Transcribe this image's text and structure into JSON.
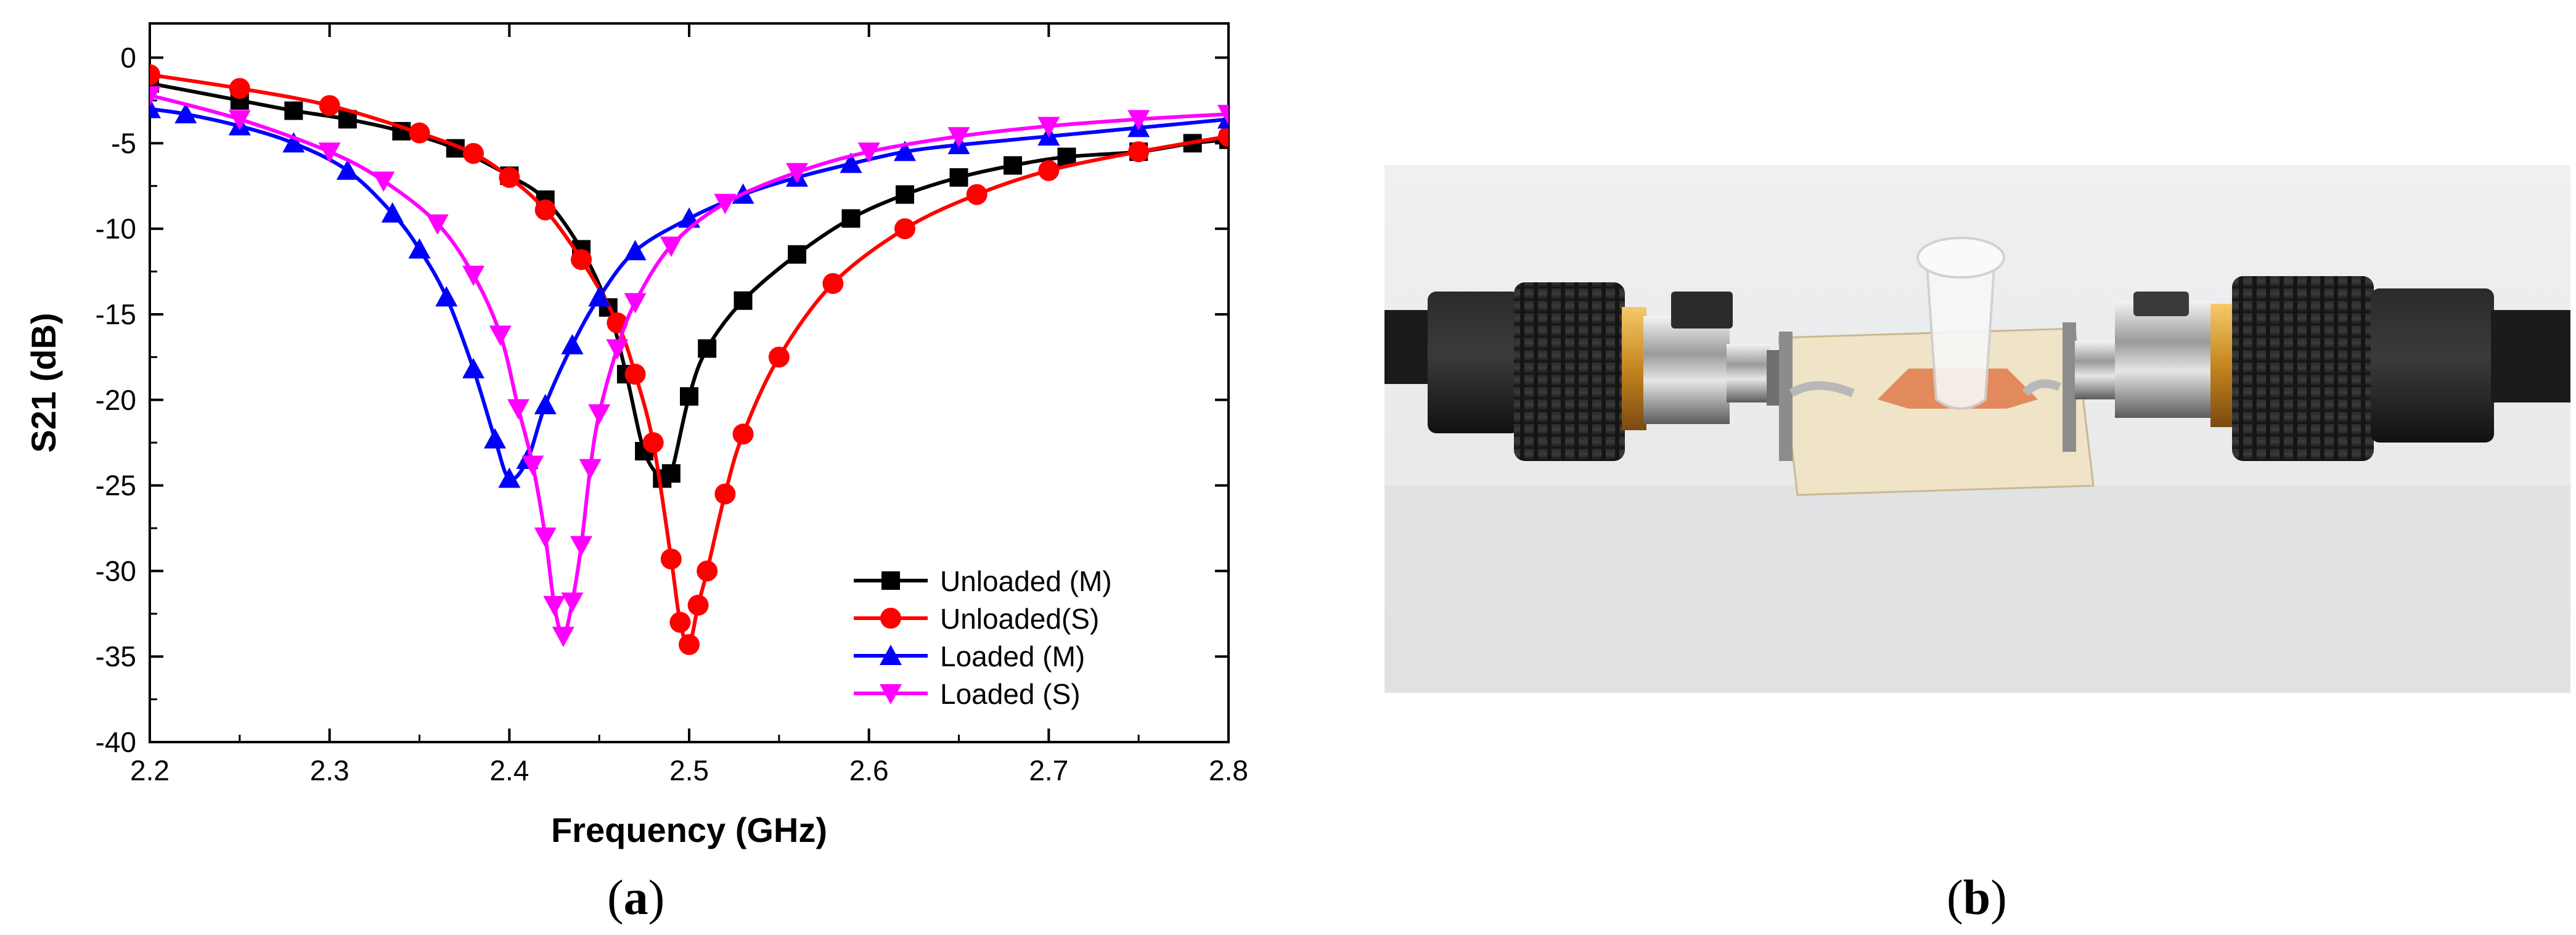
{
  "chart_data": {
    "type": "line",
    "xlabel": "Frequency (GHz)",
    "ylabel": "S21 (dB)",
    "xlim": [
      2.2,
      2.8
    ],
    "ylim": [
      -40,
      2
    ],
    "xticks": [
      "2.2",
      "2.3",
      "2.4",
      "2.5",
      "2.6",
      "2.7",
      "2.8"
    ],
    "yticks": [
      "0",
      "-5",
      "-10",
      "-15",
      "-20",
      "-25",
      "-30",
      "-35",
      "-40"
    ],
    "grid": false,
    "legend_position": "bottom-right",
    "series": [
      {
        "name": "Unloaded (M)",
        "color": "#000000",
        "marker": "square",
        "x": [
          2.2,
          2.25,
          2.28,
          2.31,
          2.34,
          2.37,
          2.4,
          2.42,
          2.44,
          2.455,
          2.465,
          2.475,
          2.485,
          2.49,
          2.5,
          2.51,
          2.53,
          2.56,
          2.59,
          2.62,
          2.65,
          2.68,
          2.71,
          2.75,
          2.78,
          2.8
        ],
        "y": [
          -1.5,
          -2.5,
          -3.1,
          -3.6,
          -4.3,
          -5.3,
          -6.9,
          -8.3,
          -11.2,
          -14.6,
          -18.5,
          -23.0,
          -24.6,
          -24.3,
          -19.8,
          -17.0,
          -14.2,
          -11.5,
          -9.4,
          -8.0,
          -7.0,
          -6.3,
          -5.8,
          -5.5,
          -5.0,
          -4.8
        ]
      },
      {
        "name": "Unloaded(S)",
        "color": "#ff0000",
        "marker": "circle",
        "x": [
          2.2,
          2.25,
          2.3,
          2.35,
          2.38,
          2.4,
          2.42,
          2.44,
          2.46,
          2.47,
          2.48,
          2.49,
          2.495,
          2.5,
          2.505,
          2.51,
          2.52,
          2.53,
          2.55,
          2.58,
          2.62,
          2.66,
          2.7,
          2.75,
          2.8
        ],
        "y": [
          -1.0,
          -1.8,
          -2.8,
          -4.4,
          -5.6,
          -7.0,
          -8.9,
          -11.8,
          -15.5,
          -18.5,
          -22.5,
          -29.3,
          -33.0,
          -34.3,
          -32.0,
          -30.0,
          -25.5,
          -22.0,
          -17.5,
          -13.2,
          -10.0,
          -8.0,
          -6.6,
          -5.5,
          -4.6
        ]
      },
      {
        "name": "Loaded (M)",
        "color": "#0000ff",
        "marker": "triangle-up",
        "x": [
          2.2,
          2.22,
          2.25,
          2.28,
          2.31,
          2.335,
          2.35,
          2.365,
          2.38,
          2.392,
          2.4,
          2.41,
          2.42,
          2.435,
          2.45,
          2.47,
          2.5,
          2.53,
          2.56,
          2.59,
          2.62,
          2.65,
          2.7,
          2.75,
          2.8
        ],
        "y": [
          -3.0,
          -3.3,
          -4.0,
          -5.0,
          -6.6,
          -9.1,
          -11.2,
          -14.0,
          -18.2,
          -22.3,
          -24.6,
          -23.5,
          -20.3,
          -16.8,
          -14.0,
          -11.3,
          -9.4,
          -8.0,
          -7.0,
          -6.2,
          -5.5,
          -5.1,
          -4.6,
          -4.1,
          -3.6
        ]
      },
      {
        "name": "Loaded (S)",
        "color": "#ff00ff",
        "marker": "triangle-down",
        "x": [
          2.2,
          2.25,
          2.3,
          2.33,
          2.36,
          2.38,
          2.395,
          2.405,
          2.413,
          2.42,
          2.425,
          2.43,
          2.435,
          2.44,
          2.445,
          2.45,
          2.46,
          2.47,
          2.49,
          2.52,
          2.56,
          2.6,
          2.65,
          2.7,
          2.75,
          2.8
        ],
        "y": [
          -2.2,
          -3.6,
          -5.5,
          -7.2,
          -9.7,
          -12.7,
          -16.2,
          -20.5,
          -23.8,
          -28.0,
          -32.0,
          -33.8,
          -31.8,
          -28.5,
          -24.0,
          -20.8,
          -17.0,
          -14.3,
          -11.0,
          -8.5,
          -6.7,
          -5.5,
          -4.6,
          -4.0,
          -3.6,
          -3.3
        ]
      }
    ]
  },
  "captions": {
    "a_letter": "a",
    "b_letter": "b"
  }
}
